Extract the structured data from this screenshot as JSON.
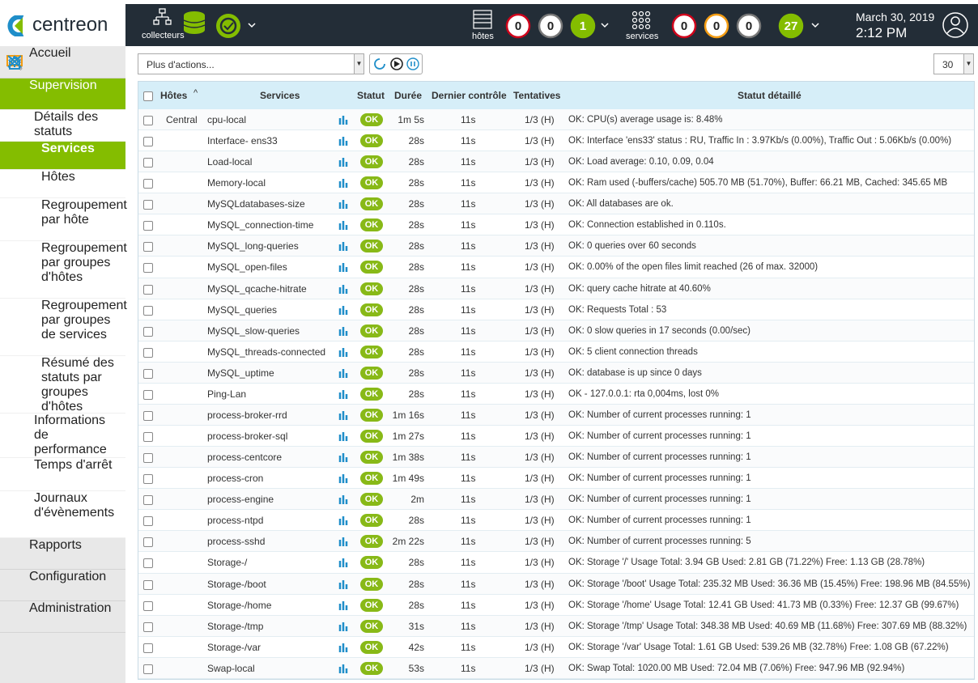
{
  "header": {
    "logo": "centreon",
    "pollers": "collecteurs",
    "hosts_label": "hôtes",
    "host_counts": [
      0,
      0,
      1
    ],
    "services_label": "services",
    "service_counts": [
      0,
      0,
      0,
      27
    ],
    "date": "March 30, 2019",
    "time": "2:12 PM"
  },
  "menu": [
    "Accueil",
    "Supervision",
    "Détails des statuts",
    "Services",
    "Hôtes",
    "Regroupement par hôte",
    "Regroupement par groupes d'hôtes",
    "Regroupement par groupes de services",
    "Résumé des statuts par groupes d'hôtes",
    "Informations de performance",
    "Temps d'arrêt",
    "Journaux d'évènements",
    "Rapports",
    "Configuration",
    "Administration"
  ],
  "toolbar": {
    "actions": "Plus d'actions...",
    "page_size": "30"
  },
  "table": {
    "columns": [
      "Hôtes",
      "Services",
      "Statut",
      "Durée",
      "Dernier contrôle",
      "Tentatives",
      "Statut détaillé"
    ],
    "host": "Central",
    "rows": [
      [
        "cpu-local",
        "OK",
        "1m 5s",
        "11s",
        "1/3 (H)",
        "OK: CPU(s) average usage is: 8.48%"
      ],
      [
        "Interface- ens33",
        "OK",
        "28s",
        "11s",
        "1/3 (H)",
        "OK: Interface 'ens33' status : RU, Traffic In : 3.97Kb/s (0.00%), Traffic Out : 5.06Kb/s (0.00%)"
      ],
      [
        "Load-local",
        "OK",
        "28s",
        "11s",
        "1/3 (H)",
        "OK: Load average: 0.10, 0.09, 0.04"
      ],
      [
        "Memory-local",
        "OK",
        "28s",
        "11s",
        "1/3 (H)",
        "OK: Ram used (-buffers/cache) 505.70 MB (51.70%), Buffer: 66.21 MB, Cached: 345.65 MB"
      ],
      [
        "MySQLdatabases-size",
        "OK",
        "28s",
        "11s",
        "1/3 (H)",
        "OK: All databases are ok."
      ],
      [
        "MySQL_connection-time",
        "OK",
        "28s",
        "11s",
        "1/3 (H)",
        "OK: Connection established in 0.110s."
      ],
      [
        "MySQL_long-queries",
        "OK",
        "28s",
        "11s",
        "1/3 (H)",
        "OK: 0 queries over 60 seconds"
      ],
      [
        "MySQL_open-files",
        "OK",
        "28s",
        "11s",
        "1/3 (H)",
        "OK: 0.00% of the open files limit reached (26 of max. 32000)"
      ],
      [
        "MySQL_qcache-hitrate",
        "OK",
        "28s",
        "11s",
        "1/3 (H)",
        "OK: query cache hitrate at 40.60%"
      ],
      [
        "MySQL_queries",
        "OK",
        "28s",
        "11s",
        "1/3 (H)",
        "OK: Requests Total : 53"
      ],
      [
        "MySQL_slow-queries",
        "OK",
        "28s",
        "11s",
        "1/3 (H)",
        "OK: 0 slow queries in 17 seconds (0.00/sec)"
      ],
      [
        "MySQL_threads-connected",
        "OK",
        "28s",
        "11s",
        "1/3 (H)",
        "OK: 5 client connection threads"
      ],
      [
        "MySQL_uptime",
        "OK",
        "28s",
        "11s",
        "1/3 (H)",
        "OK: database is up since 0 days"
      ],
      [
        "Ping-Lan",
        "OK",
        "28s",
        "11s",
        "1/3 (H)",
        "OK - 127.0.0.1: rta 0,004ms, lost 0%"
      ],
      [
        "process-broker-rrd",
        "OK",
        "1m 16s",
        "11s",
        "1/3 (H)",
        "OK: Number of current processes running: 1"
      ],
      [
        "process-broker-sql",
        "OK",
        "1m 27s",
        "11s",
        "1/3 (H)",
        "OK: Number of current processes running: 1"
      ],
      [
        "process-centcore",
        "OK",
        "1m 38s",
        "11s",
        "1/3 (H)",
        "OK: Number of current processes running: 1"
      ],
      [
        "process-cron",
        "OK",
        "1m 49s",
        "11s",
        "1/3 (H)",
        "OK: Number of current processes running: 1"
      ],
      [
        "process-engine",
        "OK",
        "2m",
        "11s",
        "1/3 (H)",
        "OK: Number of current processes running: 1"
      ],
      [
        "process-ntpd",
        "OK",
        "28s",
        "11s",
        "1/3 (H)",
        "OK: Number of current processes running: 1"
      ],
      [
        "process-sshd",
        "OK",
        "2m 22s",
        "11s",
        "1/3 (H)",
        "OK: Number of current processes running: 5"
      ],
      [
        "Storage-/",
        "OK",
        "28s",
        "11s",
        "1/3 (H)",
        "OK: Storage '/' Usage Total: 3.94 GB Used: 2.81 GB (71.22%) Free: 1.13 GB (28.78%)"
      ],
      [
        "Storage-/boot",
        "OK",
        "28s",
        "11s",
        "1/3 (H)",
        "OK: Storage '/boot' Usage Total: 235.32 MB Used: 36.36 MB (15.45%) Free: 198.96 MB (84.55%)"
      ],
      [
        "Storage-/home",
        "OK",
        "28s",
        "11s",
        "1/3 (H)",
        "OK: Storage '/home' Usage Total: 12.41 GB Used: 41.73 MB (0.33%) Free: 12.37 GB (99.67%)"
      ],
      [
        "Storage-/tmp",
        "OK",
        "31s",
        "11s",
        "1/3 (H)",
        "OK: Storage '/tmp' Usage Total: 348.38 MB Used: 40.69 MB (11.68%) Free: 307.69 MB (88.32%)"
      ],
      [
        "Storage-/var",
        "OK",
        "42s",
        "11s",
        "1/3 (H)",
        "OK: Storage '/var' Usage Total: 1.61 GB Used: 539.26 MB (32.78%) Free: 1.08 GB (67.22%)"
      ],
      [
        "Swap-local",
        "OK",
        "53s",
        "11s",
        "1/3 (H)",
        "OK: Swap Total: 1020.00 MB Used: 72.04 MB (7.06%) Free: 947.96 MB (92.94%)"
      ]
    ]
  }
}
